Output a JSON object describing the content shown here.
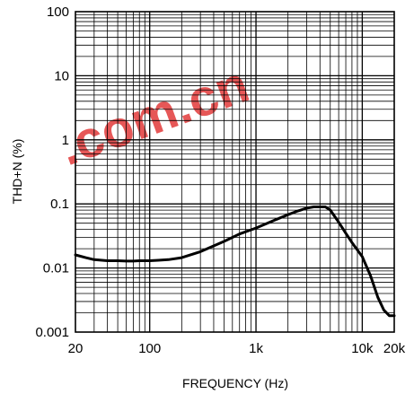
{
  "chart_data": {
    "type": "line",
    "title": "",
    "xlabel": "FREQUENCY (Hz)",
    "ylabel": "THD+N (%)",
    "xscale": "log",
    "yscale": "log",
    "xlim": [
      20,
      20000
    ],
    "ylim": [
      0.001,
      100
    ],
    "grid": true,
    "x_tick_labels": [
      {
        "value": 20,
        "label": "20"
      },
      {
        "value": 100,
        "label": "100"
      },
      {
        "value": 1000,
        "label": "1k"
      },
      {
        "value": 10000,
        "label": "10k"
      },
      {
        "value": 20000,
        "label": "20k"
      }
    ],
    "y_tick_labels": [
      {
        "value": 100,
        "label": "100"
      },
      {
        "value": 10,
        "label": "10"
      },
      {
        "value": 1,
        "label": "1"
      },
      {
        "value": 0.1,
        "label": "0.1"
      },
      {
        "value": 0.01,
        "label": "0.01"
      },
      {
        "value": 0.001,
        "label": "0.001"
      }
    ],
    "series": [
      {
        "x": [
          20,
          25,
          30,
          40,
          50,
          60,
          70,
          80,
          100,
          120,
          150,
          200,
          300,
          500,
          700,
          1000,
          1500,
          2000,
          2500,
          3000,
          3500,
          4000,
          4500,
          5000,
          6000,
          7000,
          8000,
          10000,
          12000,
          14000,
          16000,
          18000,
          20000
        ],
        "y": [
          0.016,
          0.0145,
          0.0135,
          0.013,
          0.013,
          0.0128,
          0.0128,
          0.013,
          0.013,
          0.0132,
          0.0135,
          0.0145,
          0.018,
          0.026,
          0.034,
          0.042,
          0.056,
          0.068,
          0.078,
          0.086,
          0.09,
          0.09,
          0.09,
          0.08,
          0.052,
          0.035,
          0.025,
          0.015,
          0.0075,
          0.0035,
          0.0022,
          0.0018,
          0.0018
        ]
      }
    ]
  },
  "watermark": {
    "text": ".com.cn",
    "color": "#e23a3a"
  }
}
